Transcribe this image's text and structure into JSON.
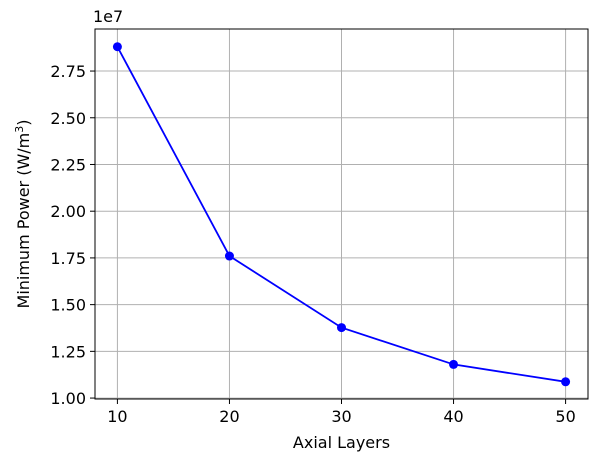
{
  "chart_data": {
    "type": "line",
    "title": "",
    "xlabel": "Axial Layers",
    "ylabel": "Minimum Power (W/m",
    "ylabel_superscript": "3",
    "ylabel_suffix": ")",
    "offset_label": "1e7",
    "x": [
      10,
      20,
      30,
      40,
      50
    ],
    "series": [
      {
        "values": [
          28800000,
          17600000,
          13770000,
          11800000,
          10870000
        ],
        "color": "#0000ff",
        "marker": "circle"
      }
    ],
    "xlim": [
      8,
      52
    ],
    "ylim": [
      9950000,
      29750000
    ],
    "xticks": [
      10,
      20,
      30,
      40,
      50
    ],
    "yticks": [
      10000000,
      12500000,
      15000000,
      17500000,
      20000000,
      22500000,
      25000000,
      27500000
    ],
    "ytick_labels": [
      "1.00",
      "1.25",
      "1.50",
      "1.75",
      "2.00",
      "2.25",
      "2.50",
      "2.75"
    ],
    "grid": true
  }
}
